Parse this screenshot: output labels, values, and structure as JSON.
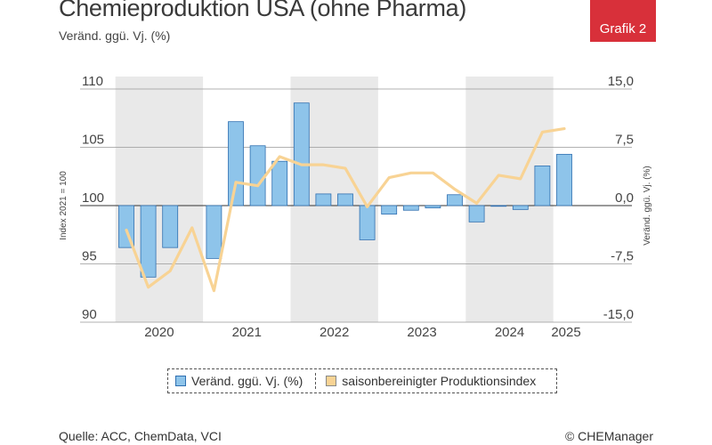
{
  "header": {
    "title": "Chemieproduktion USA (ohne Pharma)",
    "subtitle": "Veränd. ggü. Vj. (%)",
    "badge": "Grafik 2"
  },
  "footer": {
    "source": "Quelle: ACC, ChemData, VCI",
    "copyright": "© CHEManager"
  },
  "colors": {
    "bar_fill": "#8ec4ea",
    "bar_stroke": "#2f6fb0",
    "line": "#f8d394",
    "band": "#e9e9e9",
    "badge": "#d8303a"
  },
  "chart_data": {
    "type": "bar",
    "bar_series_name": "Veränd. ggü. Vj. (%)",
    "line_series_name": "saisonbereinigter Produktionsindex",
    "left_axis": {
      "label": "Index 2021 = 100",
      "min": 90,
      "max": 110,
      "ticks": [
        "110",
        "105",
        "100",
        "95",
        "90"
      ],
      "tick_values": [
        110,
        105,
        100,
        95,
        90
      ]
    },
    "right_axis": {
      "label": "Veränd. ggü. Vj. (%)",
      "min": -15,
      "max": 15,
      "ticks": [
        "15,0",
        "7,5",
        "0,0",
        "-7,5",
        "-15,0"
      ],
      "tick_values": [
        15,
        7.5,
        0,
        -7.5,
        -15
      ]
    },
    "x_labels": [
      "2020",
      "2021",
      "2022",
      "2023",
      "2024",
      "2025"
    ],
    "shaded_years": [
      "2020",
      "2022",
      "2024"
    ],
    "quarters": [
      "2020 Q1",
      "2020 Q2",
      "2020 Q3",
      "2020 Q4",
      "2021 Q1",
      "2021 Q2",
      "2021 Q3",
      "2021 Q4",
      "2022 Q1",
      "2022 Q2",
      "2022 Q3",
      "2022 Q4",
      "2023 Q1",
      "2023 Q2",
      "2023 Q3",
      "2023 Q4",
      "2024 Q1",
      "2024 Q2",
      "2024 Q3",
      "2024 Q4",
      "2025 Q1"
    ],
    "bar_values": [
      -5.4,
      -9.2,
      -5.4,
      null,
      -6.8,
      10.8,
      7.7,
      5.7,
      13.2,
      1.5,
      1.5,
      -4.4,
      -1.1,
      -0.6,
      -0.3,
      1.4,
      -2.1,
      0,
      -0.5,
      5.1,
      6.6
    ],
    "line_values": [
      97.9,
      93.0,
      94.4,
      98.1,
      92.7,
      102.0,
      101.7,
      104.2,
      103.5,
      103.5,
      103.2,
      99.9,
      102.4,
      102.8,
      102.8,
      101.4,
      100.2,
      102.6,
      102.3,
      106.3,
      106.6
    ]
  },
  "legend": {
    "bar_label": "Veränd. ggü. Vj. (%)",
    "line_label": "saisonbereinigter Produktionsindex"
  }
}
